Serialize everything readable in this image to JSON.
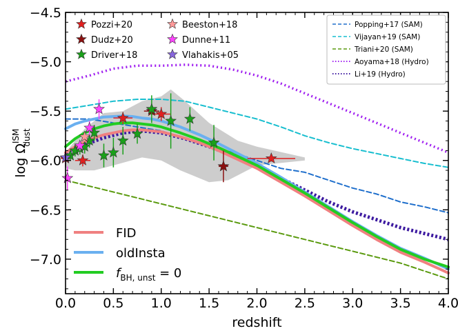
{
  "chart_data": {
    "type": "line",
    "xlabel": "redshift",
    "ylabel": "log Ω",
    "ylabel_sup": "ISM",
    "ylabel_sub": "dust",
    "xlim": [
      0.0,
      4.0
    ],
    "ylim": [
      -7.35,
      -4.5
    ],
    "x_ticks": [
      {
        "v": 0.0,
        "label": "0.0"
      },
      {
        "v": 0.5,
        "label": "0.5"
      },
      {
        "v": 1.0,
        "label": "1.0"
      },
      {
        "v": 1.5,
        "label": "1.5"
      },
      {
        "v": 2.0,
        "label": "2.0"
      },
      {
        "v": 2.5,
        "label": "2.5"
      },
      {
        "v": 3.0,
        "label": "3.0"
      },
      {
        "v": 3.5,
        "label": "3.5"
      },
      {
        "v": 4.0,
        "label": "4.0"
      }
    ],
    "y_ticks": [
      {
        "v": -4.5,
        "label": "−4.5"
      },
      {
        "v": -5.0,
        "label": "−5.0"
      },
      {
        "v": -5.5,
        "label": "−5.5"
      },
      {
        "v": -6.0,
        "label": "−6.0"
      },
      {
        "v": -6.5,
        "label": "−6.5"
      },
      {
        "v": -7.0,
        "label": "−7.0"
      }
    ],
    "grid": false,
    "shaded_region": {
      "color": "#c8c8c8",
      "upper": [
        [
          0.0,
          -5.92
        ],
        [
          0.2,
          -5.68
        ],
        [
          0.4,
          -5.52
        ],
        [
          0.6,
          -5.5
        ],
        [
          0.8,
          -5.4
        ],
        [
          1.0,
          -5.35
        ],
        [
          1.1,
          -5.28
        ],
        [
          1.25,
          -5.4
        ],
        [
          1.5,
          -5.62
        ],
        [
          1.8,
          -5.8
        ],
        [
          2.0,
          -5.86
        ],
        [
          2.5,
          -5.97
        ]
      ],
      "lower": [
        [
          2.5,
          -6.0
        ],
        [
          2.0,
          -6.05
        ],
        [
          1.7,
          -6.2
        ],
        [
          1.5,
          -6.22
        ],
        [
          1.2,
          -6.1
        ],
        [
          1.0,
          -6.0
        ],
        [
          0.8,
          -5.97
        ],
        [
          0.5,
          -6.05
        ],
        [
          0.3,
          -6.1
        ],
        [
          0.1,
          -6.1
        ],
        [
          0.0,
          -6.08
        ]
      ]
    },
    "series": [
      {
        "name": "Popping+17 (SAM)",
        "color": "#1f6fcc",
        "style": "dashed",
        "width": 2,
        "x": [
          0.0,
          0.25,
          0.5,
          0.75,
          1.0,
          1.25,
          1.5,
          1.75,
          2.0,
          2.25,
          2.5,
          2.75,
          3.0,
          3.25,
          3.5,
          3.75,
          4.0
        ],
        "y": [
          -5.58,
          -5.58,
          -5.62,
          -5.66,
          -5.7,
          -5.78,
          -5.86,
          -5.92,
          -6.0,
          -6.08,
          -6.12,
          -6.2,
          -6.28,
          -6.34,
          -6.42,
          -6.47,
          -6.53
        ]
      },
      {
        "name": "Vijayan+19 (SAM)",
        "color": "#17becf",
        "style": "dashed",
        "width": 2,
        "x": [
          0.0,
          0.25,
          0.5,
          0.75,
          1.0,
          1.25,
          1.5,
          1.75,
          2.0,
          2.25,
          2.5,
          2.75,
          3.0,
          3.25,
          3.5,
          3.75,
          4.0
        ],
        "y": [
          -5.48,
          -5.44,
          -5.4,
          -5.38,
          -5.38,
          -5.4,
          -5.46,
          -5.52,
          -5.58,
          -5.66,
          -5.75,
          -5.82,
          -5.88,
          -5.93,
          -5.98,
          -6.03,
          -6.07
        ]
      },
      {
        "name": "Triani+20 (SAM)",
        "color": "#5a9a0e",
        "style": "dashed",
        "width": 2,
        "x": [
          0.0,
          0.25,
          0.5,
          0.75,
          1.0,
          1.25,
          1.5,
          1.75,
          2.0,
          2.25,
          2.5,
          2.75,
          3.0,
          3.25,
          3.5,
          3.75,
          4.0
        ],
        "y": [
          -6.2,
          -6.26,
          -6.32,
          -6.38,
          -6.44,
          -6.5,
          -6.56,
          -6.62,
          -6.68,
          -6.74,
          -6.8,
          -6.86,
          -6.92,
          -6.98,
          -7.04,
          -7.12,
          -7.2
        ]
      },
      {
        "name": "Aoyama+18 (Hydro)",
        "color": "#a020f0",
        "style": "dotted-thick",
        "width": 3.5,
        "x": [
          0.0,
          0.25,
          0.5,
          0.75,
          1.0,
          1.25,
          1.5,
          1.75,
          2.0,
          2.25,
          2.5,
          2.75,
          3.0,
          3.25,
          3.5,
          3.75,
          4.0
        ],
        "y": [
          -5.2,
          -5.14,
          -5.07,
          -5.04,
          -5.04,
          -5.03,
          -5.04,
          -5.08,
          -5.14,
          -5.22,
          -5.32,
          -5.42,
          -5.52,
          -5.62,
          -5.72,
          -5.82,
          -5.92
        ]
      },
      {
        "name": "Li+19 (Hydro)",
        "color": "#3d1aa0",
        "style": "dotted-thick",
        "width": 5,
        "x": [
          0.0,
          0.2,
          0.4,
          0.6,
          0.8,
          1.0,
          1.25,
          1.5,
          1.75,
          2.0,
          2.25,
          2.5,
          2.75,
          3.0,
          3.25,
          3.5,
          3.75,
          4.0
        ],
        "y": [
          -5.92,
          -5.84,
          -5.77,
          -5.72,
          -5.7,
          -5.72,
          -5.78,
          -5.86,
          -5.95,
          -6.06,
          -6.18,
          -6.3,
          -6.42,
          -6.52,
          -6.6,
          -6.68,
          -6.74,
          -6.8
        ]
      },
      {
        "name": "FID",
        "color": "#f08080",
        "style": "solid",
        "width": 4,
        "x": [
          0.0,
          0.1,
          0.2,
          0.3,
          0.4,
          0.5,
          0.6,
          0.7,
          0.8,
          0.9,
          1.0,
          1.2,
          1.4,
          1.6,
          1.8,
          2.0,
          2.25,
          2.5,
          2.75,
          3.0,
          3.25,
          3.5,
          3.75,
          4.0
        ],
        "y": [
          -5.92,
          -5.86,
          -5.81,
          -5.77,
          -5.74,
          -5.72,
          -5.7,
          -5.69,
          -5.69,
          -5.7,
          -5.71,
          -5.76,
          -5.82,
          -5.9,
          -5.99,
          -6.08,
          -6.22,
          -6.36,
          -6.51,
          -6.66,
          -6.8,
          -6.93,
          -7.03,
          -7.14
        ]
      },
      {
        "name": "oldInsta",
        "color": "#6ab0f0",
        "style": "solid",
        "width": 4,
        "x": [
          0.0,
          0.1,
          0.2,
          0.3,
          0.4,
          0.5,
          0.6,
          0.7,
          0.8,
          0.9,
          1.0,
          1.2,
          1.4,
          1.6,
          1.8,
          2.0,
          2.25,
          2.5,
          2.75,
          3.0,
          3.25,
          3.5,
          3.75,
          4.0
        ],
        "y": [
          -5.68,
          -5.63,
          -5.6,
          -5.58,
          -5.56,
          -5.555,
          -5.55,
          -5.555,
          -5.57,
          -5.58,
          -5.6,
          -5.66,
          -5.74,
          -5.83,
          -5.93,
          -6.03,
          -6.17,
          -6.32,
          -6.47,
          -6.62,
          -6.76,
          -6.89,
          -6.99,
          -7.1
        ]
      },
      {
        "name": "f_BH,unst = 0",
        "color": "#22cc22",
        "style": "solid",
        "width": 4,
        "x": [
          0.0,
          0.1,
          0.2,
          0.3,
          0.4,
          0.5,
          0.6,
          0.7,
          0.8,
          0.9,
          1.0,
          1.2,
          1.4,
          1.6,
          1.8,
          2.0,
          2.25,
          2.5,
          2.75,
          3.0,
          3.25,
          3.5,
          3.75,
          4.0
        ],
        "y": [
          -5.86,
          -5.78,
          -5.72,
          -5.68,
          -5.65,
          -5.63,
          -5.62,
          -5.62,
          -5.63,
          -5.64,
          -5.66,
          -5.72,
          -5.79,
          -5.87,
          -5.96,
          -6.05,
          -6.19,
          -6.33,
          -6.48,
          -6.63,
          -6.77,
          -6.9,
          -7.0,
          -7.08
        ]
      }
    ],
    "observations": [
      {
        "name": "Pozzi+20",
        "color": "#e02020",
        "points": [
          {
            "x": 0.0,
            "y": -5.98,
            "yerr": 0.08,
            "xerr": 0.05
          },
          {
            "x": 0.18,
            "y": -6.0,
            "yerr": 0.06,
            "xerr": 0.08
          },
          {
            "x": 0.6,
            "y": -5.57,
            "yerr": 0.06,
            "xerr": 0.1
          },
          {
            "x": 1.0,
            "y": -5.53,
            "yerr": 0.07,
            "xerr": 0.1
          },
          {
            "x": 2.15,
            "y": -5.98,
            "yerr": 0.03,
            "xerr": 0.25
          }
        ]
      },
      {
        "name": "Dudz+20",
        "color": "#8b1010",
        "points": [
          {
            "x": 0.9,
            "y": -5.5,
            "yerr": 0.04,
            "xerr": 0.08
          },
          {
            "x": 1.65,
            "y": -6.06,
            "yerr": 0.16,
            "xerr": 0.05
          }
        ]
      },
      {
        "name": "Driver+18",
        "color": "#1aa01a",
        "points": [
          {
            "x": 0.05,
            "y": -5.95,
            "yerr": 0.05
          },
          {
            "x": 0.1,
            "y": -5.9,
            "yerr": 0.06
          },
          {
            "x": 0.15,
            "y": -5.88,
            "yerr": 0.06
          },
          {
            "x": 0.2,
            "y": -5.86,
            "yerr": 0.07
          },
          {
            "x": 0.25,
            "y": -5.8,
            "yerr": 0.07
          },
          {
            "x": 0.3,
            "y": -5.72,
            "yerr": 0.08
          },
          {
            "x": 0.4,
            "y": -5.95,
            "yerr": 0.12
          },
          {
            "x": 0.5,
            "y": -5.92,
            "yerr": 0.15
          },
          {
            "x": 0.6,
            "y": -5.8,
            "yerr": 0.14
          },
          {
            "x": 0.75,
            "y": -5.73,
            "yerr": 0.1
          },
          {
            "x": 0.9,
            "y": -5.48,
            "yerr": 0.14
          },
          {
            "x": 1.1,
            "y": -5.6,
            "yerr": 0.28
          },
          {
            "x": 1.3,
            "y": -5.58,
            "yerr": 0.12
          },
          {
            "x": 1.55,
            "y": -5.82,
            "yerr": 0.18
          }
        ]
      },
      {
        "name": "Beeston+18",
        "color": "#ff9999",
        "points": [
          {
            "x": 0.2,
            "y": -5.76,
            "yerr": 0.05
          }
        ]
      },
      {
        "name": "Dunne+11",
        "color": "#ff44ff",
        "points": [
          {
            "x": 0.02,
            "y": -6.18,
            "yerr": 0.12
          },
          {
            "x": 0.15,
            "y": -5.85,
            "yerr": 0.05
          },
          {
            "x": 0.25,
            "y": -5.67,
            "yerr": 0.07
          },
          {
            "x": 0.35,
            "y": -5.48,
            "yerr": 0.1
          }
        ]
      },
      {
        "name": "Vlahakis+05",
        "color": "#8866dd",
        "points": [
          {
            "x": 0.0,
            "y": -5.97,
            "yerr": 0.1
          }
        ]
      }
    ]
  }
}
